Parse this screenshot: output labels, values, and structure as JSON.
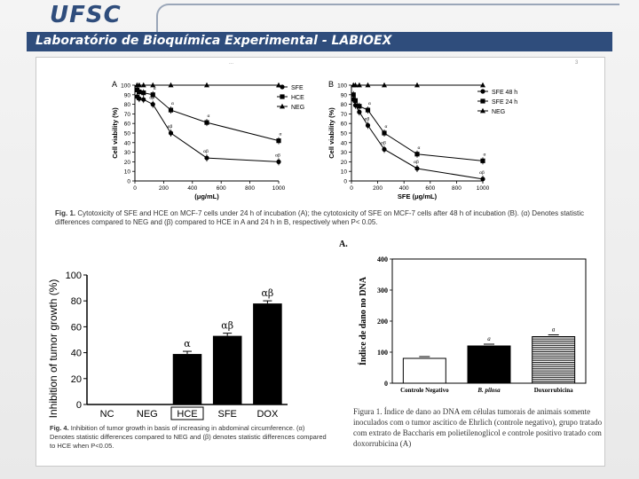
{
  "header": {
    "logo": "UFSC",
    "lab_title": "Laboratório de Bioquímica Experimental - LABIOEX",
    "brand_color": "#2f4d7c"
  },
  "panel": {
    "journal_header": "...",
    "page_number": "3"
  },
  "captions": {
    "fig1_label": "Fig. 1.",
    "fig1_text": "Cytotoxicity of SFE and HCE on MCF-7 cells under 24 h of incubation (A); the cytotoxicity of SFE on MCF-7 cells after 48 h of incubation (B). (α) Denotes statistic differences compared to NEG and (β) compared to HCE in A and 24 h in B, respectively when P< 0.05.",
    "fig4_label": "Fig. 4.",
    "fig4_text": "Inhibition of tumor growth in basis of increasing in abdominal circumference. (α) Denotes statistic differences compared to NEG and (β) denotes statistic differences compared to HCE when P<0.05.",
    "figD_text": "Figura 1. Índice de dano ao DNA em células tumorais de animais somente inoculados com o tumor ascítico de Ehrlich (controle negativo), grupo tratado com extrato de Baccharis em polietilenoglicol e controle positivo tratado com doxorrubicina (A)"
  },
  "chart_data": [
    {
      "id": "fig1A",
      "type": "line",
      "panel_label": "A",
      "xlabel": "(μg/mL)",
      "ylabel": "Cell viability (%)",
      "xlim": [
        0,
        1000
      ],
      "ylim": [
        0,
        100
      ],
      "xticks": [
        0,
        200,
        400,
        600,
        800,
        1000
      ],
      "yticks": [
        0,
        10,
        20,
        30,
        40,
        50,
        60,
        70,
        80,
        90,
        100
      ],
      "x": [
        15,
        30,
        60,
        125,
        250,
        500,
        1000
      ],
      "series": [
        {
          "name": "SFE",
          "marker": "circle",
          "values": [
            88,
            86,
            85,
            80,
            50,
            24,
            20
          ],
          "annotations": [
            "",
            "",
            "",
            "αβ",
            "αβ",
            "αβ",
            "αβ"
          ]
        },
        {
          "name": "HCE",
          "marker": "square",
          "values": [
            95,
            93,
            92,
            90,
            74,
            61,
            42
          ],
          "annotations": [
            "",
            "",
            "",
            "α",
            "α",
            "α",
            "α"
          ]
        },
        {
          "name": "NEG",
          "marker": "triangle",
          "values": [
            100,
            100,
            100,
            100,
            100,
            100,
            100
          ],
          "annotations": [
            "",
            "",
            "",
            "",
            "",
            "",
            ""
          ]
        }
      ]
    },
    {
      "id": "fig1B",
      "type": "line",
      "panel_label": "B",
      "xlabel": "SFE (μg/mL)",
      "ylabel": "Cell viability (%)",
      "xlim": [
        0,
        1000
      ],
      "ylim": [
        0,
        100
      ],
      "xticks": [
        0,
        200,
        400,
        600,
        800,
        1000
      ],
      "yticks": [
        0,
        10,
        20,
        30,
        40,
        50,
        60,
        70,
        80,
        90,
        100
      ],
      "x": [
        15,
        30,
        60,
        125,
        250,
        500,
        1000
      ],
      "series": [
        {
          "name": "SFE 48 h",
          "marker": "circle",
          "values": [
            85,
            79,
            72,
            58,
            33,
            13,
            2
          ],
          "annotations": [
            "",
            "",
            "α",
            "αβ",
            "αβ",
            "αβ",
            "αβ"
          ]
        },
        {
          "name": "SFE 24 h",
          "marker": "square",
          "values": [
            90,
            84,
            78,
            74,
            50,
            28,
            21
          ],
          "annotations": [
            "",
            "",
            "",
            "α",
            "α",
            "α",
            "α"
          ]
        },
        {
          "name": "NEG",
          "marker": "triangle",
          "values": [
            100,
            100,
            100,
            100,
            100,
            100,
            100
          ],
          "annotations": [
            "",
            "",
            "",
            "",
            "",
            "",
            ""
          ]
        }
      ]
    },
    {
      "id": "fig4",
      "type": "bar",
      "ylabel": "Inhibition of tumor growth (%)",
      "ylim": [
        0,
        100
      ],
      "yticks": [
        0,
        20,
        40,
        60,
        80,
        100
      ],
      "categories": [
        "NC",
        "NEG",
        "HCE",
        "SFE",
        "DOX"
      ],
      "values": [
        0,
        0,
        39,
        53,
        78
      ],
      "annotations": [
        "",
        "",
        "α",
        "αβ",
        "αβ"
      ],
      "highlight_category": "HCE",
      "bar_color": "#000000"
    },
    {
      "id": "figD",
      "type": "bar",
      "panel_label": "A",
      "ylabel": "Índice de dano no DNA",
      "ylim": [
        0,
        400
      ],
      "yticks": [
        0,
        100,
        200,
        300,
        400
      ],
      "categories": [
        "Controle Negativo",
        "B. pilosa",
        "Doxorrubicina"
      ],
      "values": [
        80,
        120,
        150
      ],
      "annotations": [
        "",
        "a",
        "a"
      ],
      "fills": [
        "white",
        "black",
        "hatched"
      ]
    }
  ]
}
